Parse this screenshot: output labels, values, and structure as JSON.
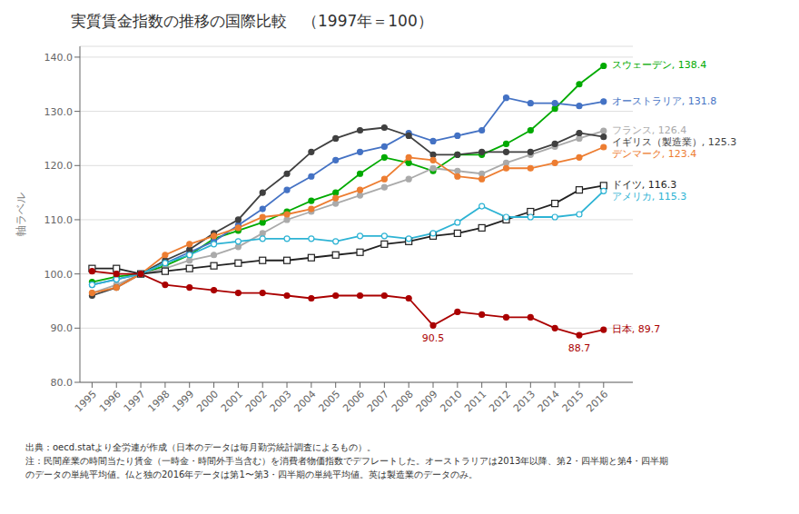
{
  "chart_data": {
    "type": "line",
    "title": "実質賃金指数の推移の国際比較　（1997年＝100）",
    "ylabel": "軸ラベル",
    "footnotes": [
      "出典：oecd.statより全労連が作成（日本のデータは毎月勤労統計調査によるもの）。",
      "注：民間産業の時間当たり賃金（一時金・時間外手当含む）を消費者物価指数でデフレートした。オーストラリアは2013年以降、第2・四半期と第4・四半期",
      "のデータの単純平均値。仏と独の2016年データは第1〜第3・四半期の単純平均値。英は製造業のデータのみ。"
    ],
    "xlim": [
      1994.5,
      2017.2
    ],
    "ylim": [
      80.0,
      142.0
    ],
    "xticks": [
      1995,
      1996,
      1997,
      1998,
      1999,
      2000,
      2001,
      2002,
      2003,
      2004,
      2005,
      2006,
      2007,
      2008,
      2009,
      2010,
      2011,
      2012,
      2013,
      2014,
      2015,
      2016
    ],
    "yticks": [
      {
        "value": 80.0,
        "label": "80.0"
      },
      {
        "value": 90.0,
        "label": "90.0"
      },
      {
        "value": 100.0,
        "label": "100.0"
      },
      {
        "value": 110.0,
        "label": "110.0"
      },
      {
        "value": 120.0,
        "label": "120.0"
      },
      {
        "value": 130.0,
        "label": "130.0"
      },
      {
        "value": 140.0,
        "label": "140.0"
      }
    ],
    "grid": "y",
    "x": [
      1995,
      1996,
      1997,
      1998,
      1999,
      2000,
      2001,
      2002,
      2003,
      2004,
      2005,
      2006,
      2007,
      2008,
      2009,
      2010,
      2011,
      2012,
      2013,
      2014,
      2015,
      2016
    ],
    "series": [
      {
        "name": "スウェーデン, 138.4",
        "color": "#00aa00",
        "marker": "circle",
        "values": [
          98.5,
          99.5,
          100.0,
          101.5,
          103.5,
          106.5,
          108.0,
          109.5,
          111.5,
          113.5,
          115.0,
          118.5,
          121.5,
          120.5,
          119.0,
          122.0,
          122.0,
          124.0,
          126.5,
          130.5,
          135.0,
          138.4
        ]
      },
      {
        "name": "オーストラリア, 131.8",
        "color": "#4472c4",
        "marker": "circle",
        "values": [
          98.0,
          99.0,
          100.0,
          102.0,
          104.0,
          106.0,
          109.0,
          112.0,
          115.5,
          118.0,
          121.0,
          122.5,
          123.5,
          126.0,
          124.5,
          125.5,
          126.5,
          132.5,
          131.5,
          131.5,
          131.0,
          131.8
        ]
      },
      {
        "name": "フランス, 126.4",
        "color": "#aaaaaa",
        "marker": "circle",
        "values": [
          96.5,
          98.0,
          100.0,
          101.0,
          102.5,
          103.5,
          105.0,
          107.5,
          110.0,
          111.5,
          113.0,
          114.5,
          116.0,
          117.5,
          119.5,
          119.0,
          118.5,
          120.5,
          122.0,
          123.5,
          125.0,
          126.4
        ]
      },
      {
        "name": "イギリス（製造業）, 125.3",
        "color": "#404040",
        "marker": "circle",
        "values": [
          96.0,
          97.5,
          100.0,
          102.5,
          104.5,
          107.5,
          110.0,
          115.0,
          118.5,
          122.5,
          125.0,
          126.5,
          127.0,
          125.5,
          122.0,
          122.0,
          122.5,
          122.5,
          122.5,
          124.0,
          126.0,
          125.3
        ]
      },
      {
        "name": "デンマーク, 123.4",
        "color": "#ed7d31",
        "marker": "circle",
        "values": [
          96.5,
          97.5,
          100.0,
          103.5,
          105.5,
          107.0,
          108.5,
          110.5,
          111.0,
          112.0,
          114.0,
          115.5,
          117.5,
          121.5,
          121.0,
          118.0,
          117.5,
          119.5,
          119.5,
          120.5,
          121.5,
          123.4
        ]
      },
      {
        "name": "ドイツ, 116.3",
        "color": "#222222",
        "marker": "open_square",
        "values": [
          101.0,
          101.0,
          100.0,
          100.5,
          101.0,
          101.5,
          102.0,
          102.5,
          102.5,
          103.0,
          103.5,
          104.0,
          105.5,
          106.0,
          107.0,
          107.5,
          108.5,
          110.0,
          111.5,
          113.0,
          115.5,
          116.3
        ]
      },
      {
        "name": "アメリカ, 115.3",
        "color": "#2db3d4",
        "marker": "open_circle",
        "values": [
          98.0,
          99.0,
          100.0,
          102.0,
          103.5,
          105.5,
          106.0,
          106.5,
          106.5,
          106.5,
          106.0,
          107.0,
          107.0,
          106.5,
          107.5,
          109.5,
          112.5,
          110.5,
          110.5,
          110.5,
          111.0,
          115.3
        ]
      },
      {
        "name": "日本, 89.7",
        "color": "#aa0000",
        "marker": "circle",
        "values": [
          100.5,
          100.0,
          100.0,
          98.0,
          97.5,
          97.0,
          96.5,
          96.5,
          96.0,
          95.5,
          96.0,
          96.0,
          96.0,
          95.5,
          90.5,
          93.0,
          92.5,
          92.0,
          92.0,
          90.0,
          88.7,
          89.7
        ]
      }
    ],
    "annotations": [
      {
        "text": "90.5",
        "x": 2009,
        "y": 90.5,
        "color": "#aa0000"
      },
      {
        "text": "88.7",
        "x": 2015,
        "y": 88.7,
        "color": "#aa0000"
      }
    ]
  }
}
